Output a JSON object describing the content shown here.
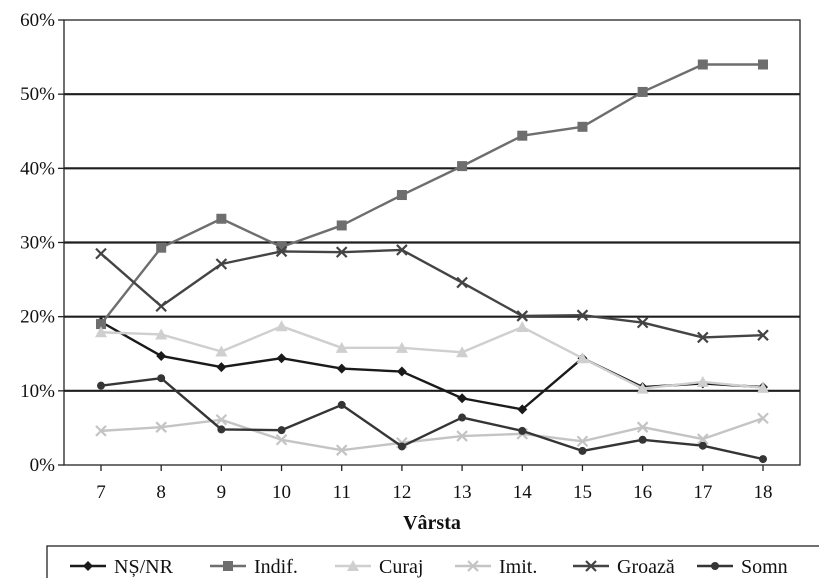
{
  "chart_data": {
    "type": "line",
    "x": [
      7,
      8,
      9,
      10,
      11,
      12,
      13,
      14,
      15,
      16,
      17,
      18
    ],
    "xlabel": "Vârsta",
    "ylabel": "",
    "ylim": [
      0,
      60
    ],
    "yticks": [
      "0%",
      "10%",
      "20%",
      "30%",
      "40%",
      "50%",
      "60%"
    ],
    "xticks": [
      "7",
      "8",
      "9",
      "10",
      "11",
      "12",
      "13",
      "14",
      "15",
      "16",
      "17",
      "18"
    ],
    "grid": "horizontal",
    "legend": "bottom",
    "series": [
      {
        "name": "NȘ/NR",
        "marker": "diamond",
        "color": "#1a1a1a",
        "values": [
          19.3,
          14.7,
          13.2,
          14.4,
          13.0,
          12.6,
          9.0,
          7.5,
          14.4,
          10.5,
          11.0,
          10.5
        ]
      },
      {
        "name": "Indif.",
        "marker": "square",
        "color": "#6e6e6e",
        "values": [
          19.0,
          29.3,
          33.2,
          29.4,
          32.3,
          36.4,
          40.3,
          44.4,
          45.6,
          50.3,
          54.0,
          54.0
        ]
      },
      {
        "name": "Curaj",
        "marker": "triangle",
        "color": "#cfcfcf",
        "values": [
          17.9,
          17.6,
          15.3,
          18.7,
          15.8,
          15.8,
          15.2,
          18.6,
          14.4,
          10.3,
          11.2,
          10.4
        ]
      },
      {
        "name": "Imit.",
        "marker": "x",
        "color": "#c4c4c4",
        "values": [
          4.6,
          5.1,
          6.1,
          3.4,
          2.0,
          3.0,
          3.9,
          4.2,
          3.2,
          5.1,
          3.5,
          6.3
        ]
      },
      {
        "name": "Groază",
        "marker": "x",
        "color": "#444444",
        "values": [
          28.5,
          21.4,
          27.1,
          28.8,
          28.7,
          29.0,
          24.6,
          20.1,
          20.2,
          19.2,
          17.2,
          17.5
        ]
      },
      {
        "name": "Somn",
        "marker": "circle",
        "color": "#353535",
        "values": [
          10.7,
          11.7,
          4.8,
          4.7,
          8.1,
          2.5,
          6.4,
          4.6,
          1.9,
          3.4,
          2.6,
          0.8
        ]
      }
    ]
  }
}
